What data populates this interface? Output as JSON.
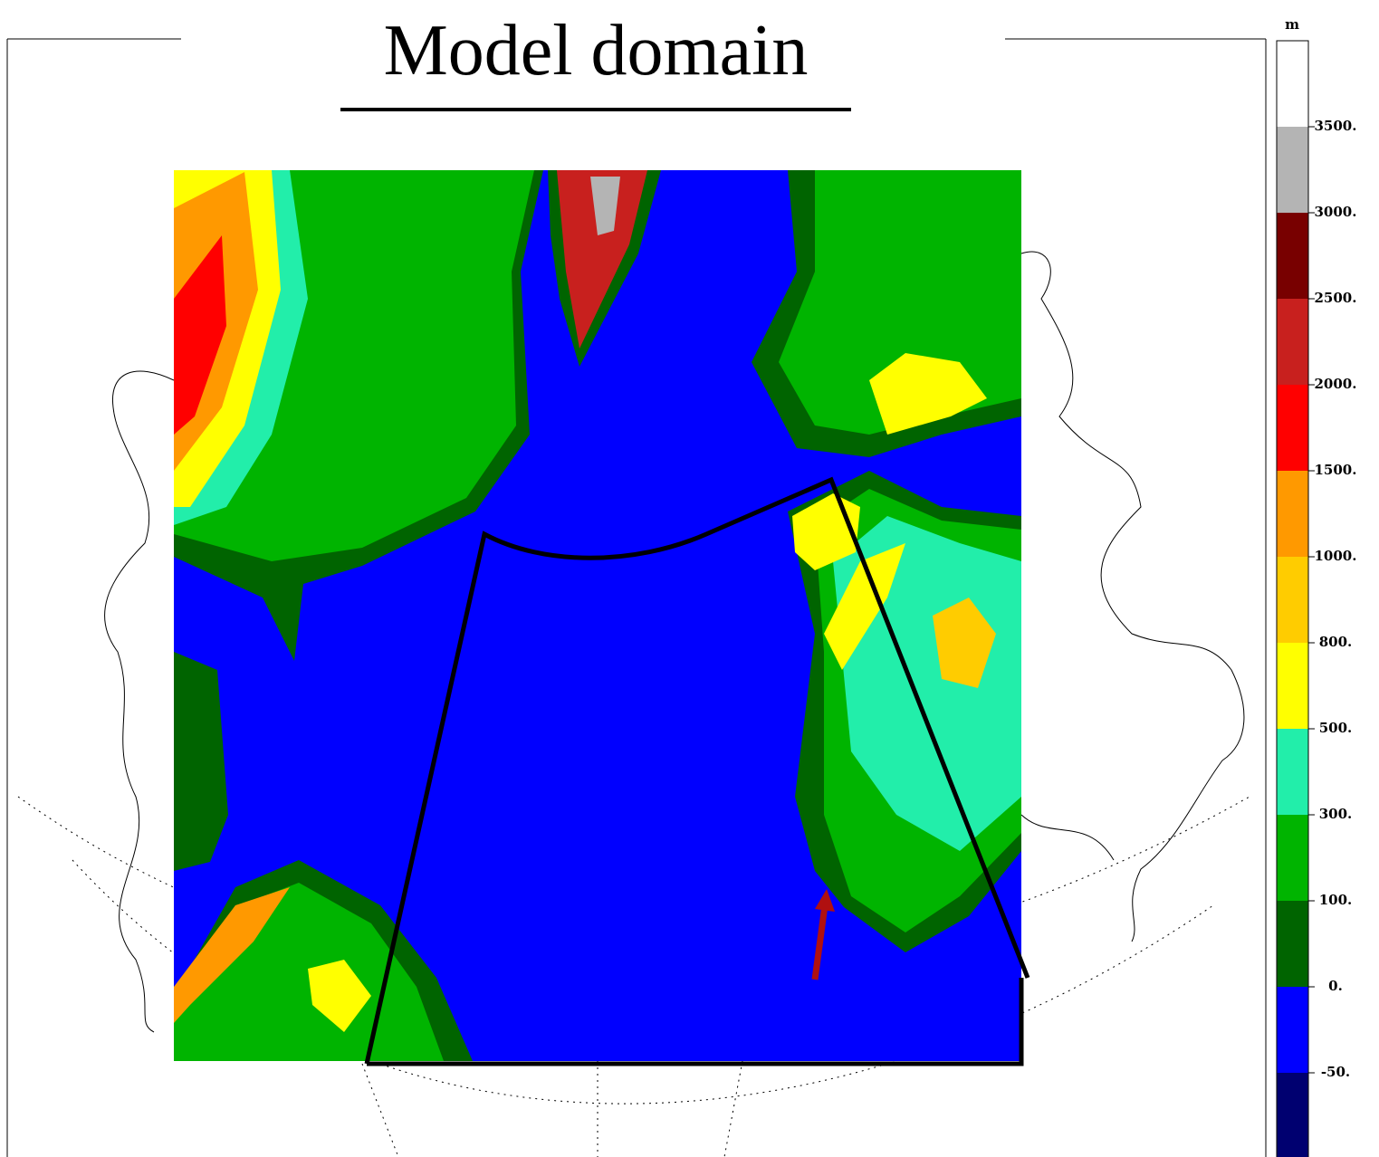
{
  "title": "Model domain",
  "colorbar": {
    "unit": "m",
    "levels": [
      {
        "value": 3500,
        "label": "3500."
      },
      {
        "value": 3000,
        "label": "3000."
      },
      {
        "value": 2500,
        "label": "2500."
      },
      {
        "value": 2000,
        "label": "2000."
      },
      {
        "value": 1500,
        "label": "1500."
      },
      {
        "value": 1000,
        "label": "1000."
      },
      {
        "value": 800,
        "label": "800."
      },
      {
        "value": 500,
        "label": "500."
      },
      {
        "value": 300,
        "label": "300."
      },
      {
        "value": 100,
        "label": "100."
      },
      {
        "value": 0,
        "label": "0."
      },
      {
        "value": -50,
        "label": "-50."
      }
    ],
    "colors": [
      "#ffffff",
      "#b4b4b4",
      "#780000",
      "#c8201e",
      "#ff0000",
      "#ff9900",
      "#ffcc00",
      "#ffff00",
      "#22eeaa",
      "#00b400",
      "#006400",
      "#0000ff",
      "#000070"
    ]
  }
}
